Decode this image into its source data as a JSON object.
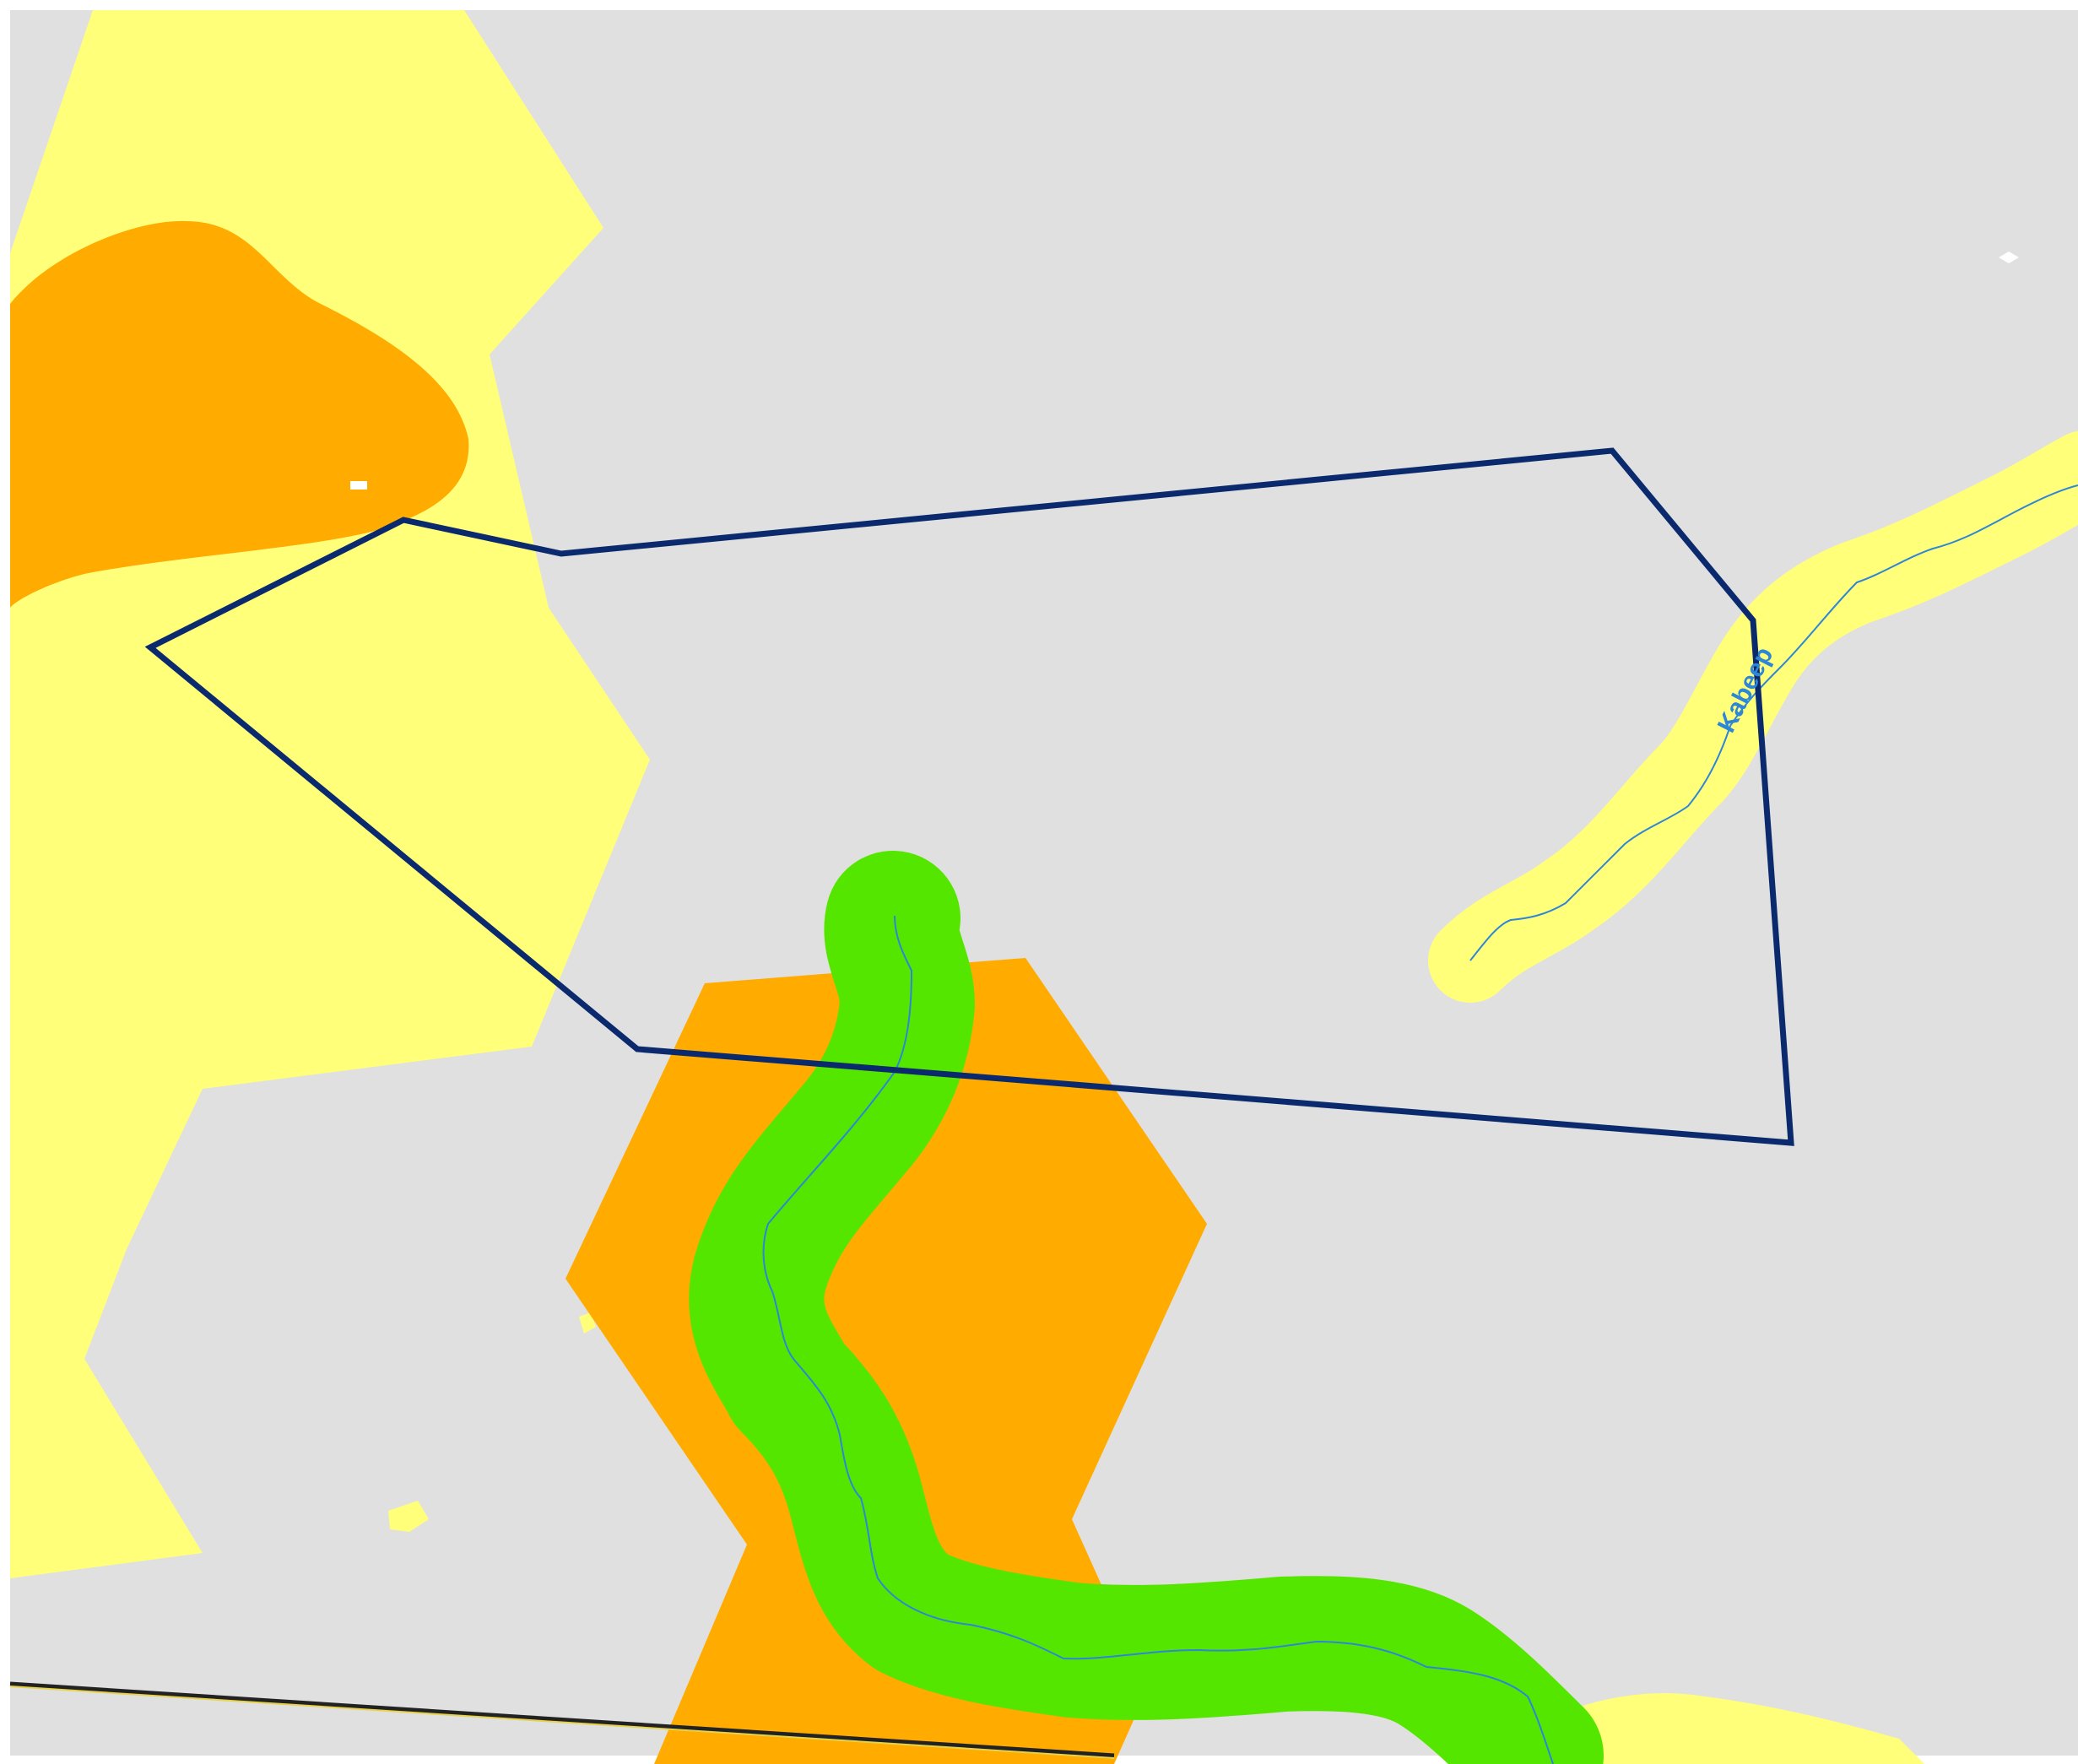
{
  "map": {
    "labels": {
      "river_name": "Kabeep"
    },
    "colors": {
      "background": "#e0e0e0",
      "zone_low": "#ffff7a",
      "zone_high": "#ffab00",
      "river_buffer": "#55e600",
      "stream_line": "#2e86d6",
      "site_boundary": "#0b2a6e",
      "road": "#e6d24a"
    }
  }
}
